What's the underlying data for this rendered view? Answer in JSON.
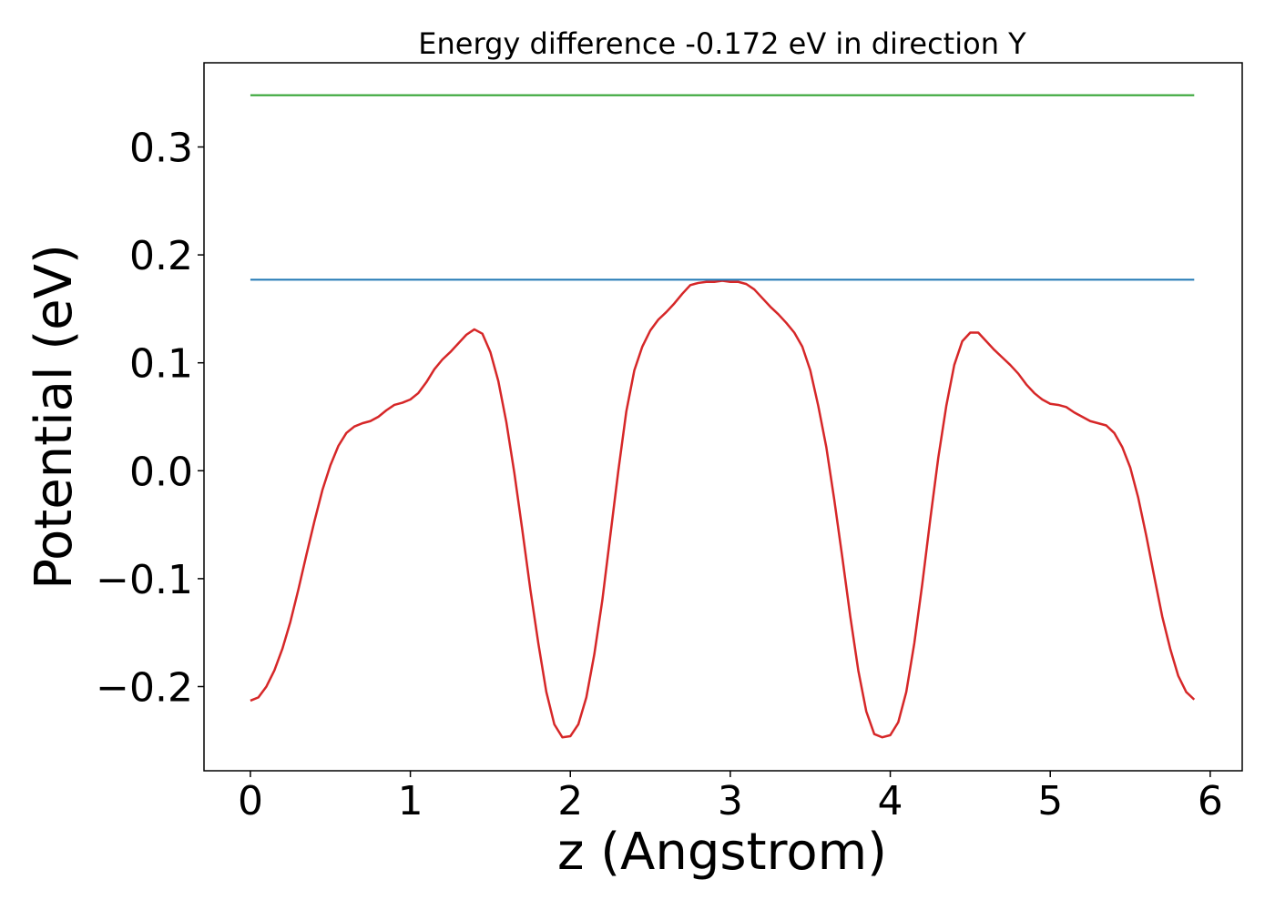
{
  "chart_data": {
    "type": "line",
    "title": "Energy difference -0.172 eV in direction Y",
    "xlabel": "z (Angstrom)",
    "ylabel": "Potential (eV)",
    "xlim": [
      -0.29,
      6.2
    ],
    "ylim": [
      -0.278,
      0.378
    ],
    "xticks": [
      0,
      1,
      2,
      3,
      4,
      5,
      6
    ],
    "xtick_labels": [
      "0",
      "1",
      "2",
      "3",
      "4",
      "5",
      "6"
    ],
    "yticks": [
      -0.2,
      -0.1,
      0.0,
      0.1,
      0.2,
      0.3
    ],
    "ytick_labels": [
      "−0.2",
      "−0.1",
      "0.0",
      "0.1",
      "0.2",
      "0.3"
    ],
    "grid": false,
    "series": [
      {
        "color": "#d62728",
        "x": [
          0.0,
          0.05,
          0.1,
          0.15,
          0.2,
          0.25,
          0.3,
          0.35,
          0.4,
          0.45,
          0.5,
          0.55,
          0.6,
          0.65,
          0.7,
          0.75,
          0.8,
          0.85,
          0.9,
          0.95,
          1.0,
          1.05,
          1.1,
          1.15,
          1.2,
          1.25,
          1.3,
          1.35,
          1.4,
          1.45,
          1.5,
          1.55,
          1.6,
          1.65,
          1.7,
          1.75,
          1.8,
          1.85,
          1.9,
          1.95,
          2.0,
          2.05,
          2.1,
          2.15,
          2.2,
          2.25,
          2.3,
          2.35,
          2.4,
          2.45,
          2.5,
          2.55,
          2.6,
          2.65,
          2.7,
          2.75,
          2.8,
          2.85,
          2.9,
          2.95,
          3.0,
          3.05,
          3.1,
          3.15,
          3.2,
          3.25,
          3.3,
          3.35,
          3.4,
          3.45,
          3.5,
          3.55,
          3.6,
          3.65,
          3.7,
          3.75,
          3.8,
          3.85,
          3.9,
          3.95,
          4.0,
          4.05,
          4.1,
          4.15,
          4.2,
          4.25,
          4.3,
          4.35,
          4.4,
          4.45,
          4.5,
          4.55,
          4.6,
          4.65,
          4.7,
          4.75,
          4.8,
          4.85,
          4.9,
          4.95,
          5.0,
          5.05,
          5.1,
          5.15,
          5.2,
          5.25,
          5.3,
          5.35,
          5.4,
          5.45,
          5.5,
          5.55,
          5.6,
          5.65,
          5.7,
          5.75,
          5.8,
          5.85,
          5.9
        ],
        "y": [
          -0.213,
          -0.21,
          -0.2,
          -0.185,
          -0.165,
          -0.14,
          -0.11,
          -0.078,
          -0.047,
          -0.018,
          0.005,
          0.023,
          0.035,
          0.041,
          0.044,
          0.046,
          0.05,
          0.056,
          0.061,
          0.063,
          0.066,
          0.072,
          0.082,
          0.094,
          0.103,
          0.11,
          0.118,
          0.126,
          0.131,
          0.127,
          0.11,
          0.083,
          0.045,
          -0.002,
          -0.055,
          -0.11,
          -0.16,
          -0.205,
          -0.235,
          -0.247,
          -0.246,
          -0.235,
          -0.21,
          -0.17,
          -0.12,
          -0.06,
          0.0,
          0.055,
          0.093,
          0.115,
          0.13,
          0.14,
          0.147,
          0.155,
          0.164,
          0.172,
          0.174,
          0.175,
          0.175,
          0.176,
          0.175,
          0.175,
          0.173,
          0.168,
          0.16,
          0.152,
          0.145,
          0.137,
          0.128,
          0.115,
          0.093,
          0.06,
          0.022,
          -0.027,
          -0.08,
          -0.135,
          -0.185,
          -0.223,
          -0.244,
          -0.247,
          -0.245,
          -0.233,
          -0.205,
          -0.16,
          -0.105,
          -0.045,
          0.012,
          0.06,
          0.098,
          0.12,
          0.128,
          0.128,
          0.12,
          0.112,
          0.105,
          0.098,
          0.09,
          0.08,
          0.072,
          0.066,
          0.062,
          0.061,
          0.059,
          0.054,
          0.05,
          0.046,
          0.044,
          0.042,
          0.035,
          0.022,
          0.003,
          -0.025,
          -0.06,
          -0.098,
          -0.135,
          -0.165,
          -0.19,
          -0.205,
          -0.212
        ]
      },
      {
        "color": "#1f77b4",
        "x": [
          0.0,
          5.9
        ],
        "y": [
          0.177,
          0.177
        ]
      },
      {
        "color": "#2ca02c",
        "x": [
          0.0,
          5.9
        ],
        "y": [
          0.348,
          0.348
        ]
      }
    ]
  }
}
